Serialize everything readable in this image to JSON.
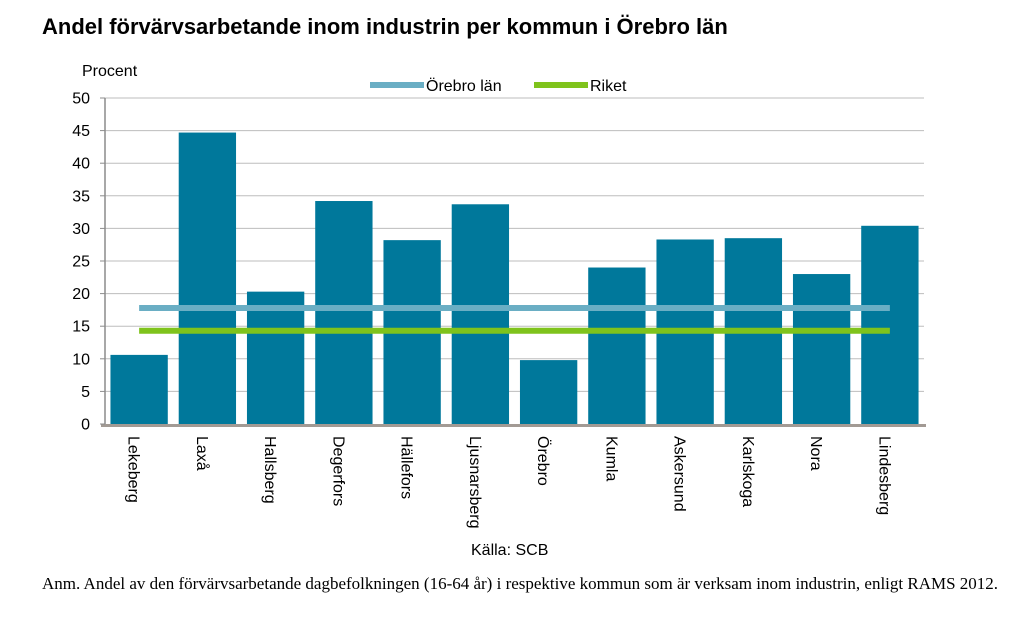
{
  "title": "Andel förvärvsarbetande inom industrin per kommun i Örebro län",
  "note": "Anm. Andel av den förvärvsarbetande dagbefolkningen (16-64 år) i respektive kommun som är verksam inom industrin, enligt RAMS 2012.",
  "chart_data": {
    "type": "bar",
    "title": "Andel förvärvsarbetande inom industrin per kommun i Örebro län",
    "ylabel": "Procent",
    "xlabel": "",
    "source": "Källa: SCB",
    "ylim": [
      0,
      50
    ],
    "yticks": [
      0,
      5,
      10,
      15,
      20,
      25,
      30,
      35,
      40,
      45,
      50
    ],
    "grid": true,
    "legend_position": "top-center",
    "categories": [
      "Lekeberg",
      "Laxå",
      "Hallsberg",
      "Degerfors",
      "Hällefors",
      "Ljusnarsberg",
      "Örebro",
      "Kumla",
      "Askersund",
      "Karlskoga",
      "Nora",
      "Lindesberg"
    ],
    "values": [
      10.6,
      44.7,
      20.3,
      34.2,
      28.2,
      33.7,
      9.8,
      24.0,
      28.3,
      28.5,
      23.0,
      30.4
    ],
    "bar_color": "#00789b",
    "reference_lines": [
      {
        "name": "Örebro län",
        "value": 17.8,
        "color": "#6aaec4"
      },
      {
        "name": "Riket",
        "value": 14.3,
        "color": "#7fc31c"
      }
    ]
  }
}
